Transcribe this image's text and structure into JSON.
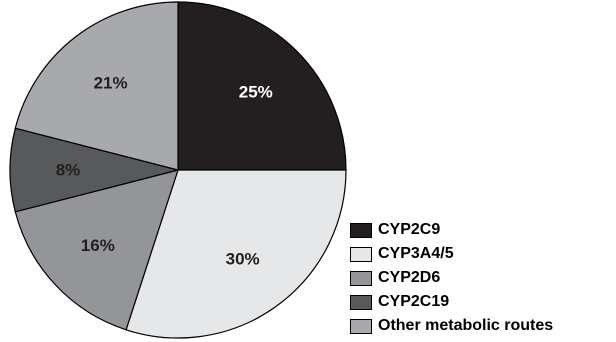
{
  "chart_data": {
    "type": "pie",
    "start": "12 o'clock",
    "direction": "clockwise",
    "slices": [
      {
        "label": "CYP2C9",
        "value": 25,
        "value_label": "25%",
        "color": "#231f20",
        "text_color": "#ffffff"
      },
      {
        "label": "CYP3A4/5",
        "value": 30,
        "value_label": "30%",
        "color": "#e6e7e8",
        "text_color": "#231f20"
      },
      {
        "label": "CYP2D6",
        "value": 16,
        "value_label": "16%",
        "color": "#939598",
        "text_color": "#231f20"
      },
      {
        "label": "CYP2C19",
        "value": 8,
        "value_label": "8%",
        "color": "#58595b",
        "text_color": "#231f20"
      },
      {
        "label": "Other metabolic routes",
        "value": 21,
        "value_label": "21%",
        "color": "#a7a9ac",
        "text_color": "#231f20"
      }
    ],
    "legend_position": "bottom-right"
  }
}
